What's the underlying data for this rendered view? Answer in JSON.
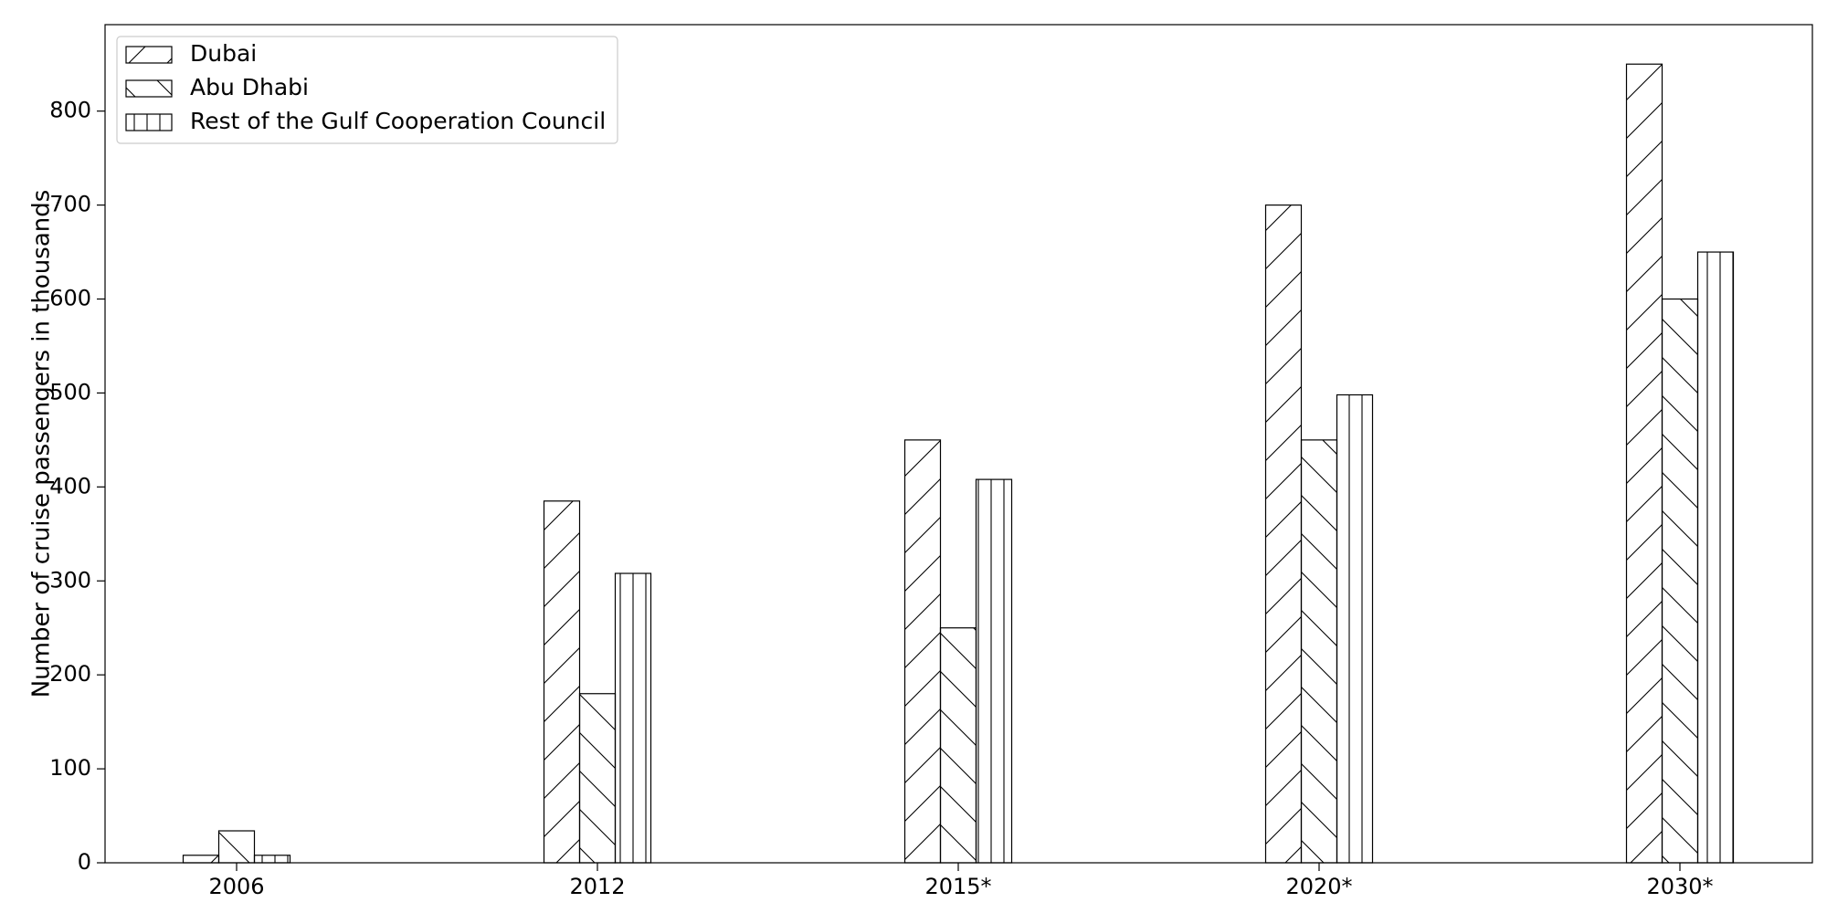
{
  "chart_data": {
    "type": "bar",
    "title": "",
    "xlabel": "",
    "ylabel": "Number of cruise passengers in thousands",
    "categories": [
      "2006",
      "2012",
      "2015*",
      "2020*",
      "2030*"
    ],
    "series": [
      {
        "name": "Dubai",
        "values": [
          8,
          385,
          450,
          700,
          850
        ],
        "hatch": "forward-diagonal"
      },
      {
        "name": "Abu Dhabi",
        "values": [
          34,
          180,
          250,
          450,
          600
        ],
        "hatch": "back-diagonal"
      },
      {
        "name": "Rest of the Gulf Cooperation Council",
        "values": [
          8,
          308,
          408,
          498,
          650
        ],
        "hatch": "vertical"
      }
    ],
    "ylim": [
      0,
      892
    ],
    "yticks": [
      0,
      100,
      200,
      300,
      400,
      500,
      600,
      700,
      800
    ],
    "grid": false,
    "legend_position": "top-left",
    "colors": {
      "edge": "#000000",
      "fill": "#ffffff"
    }
  }
}
